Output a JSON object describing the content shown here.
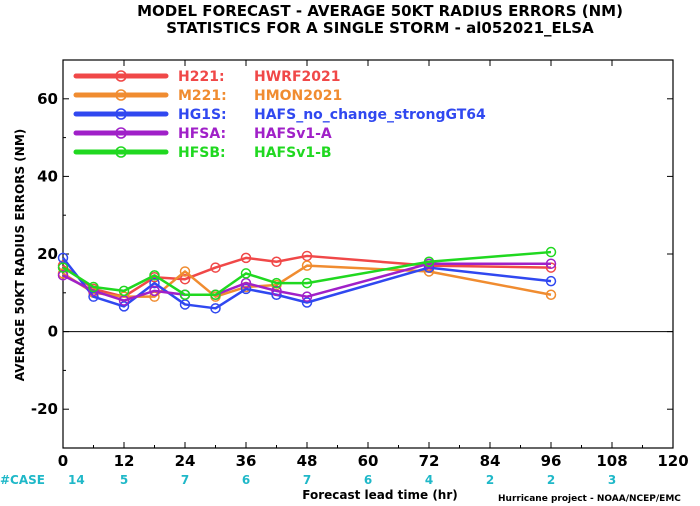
{
  "title_line1": "MODEL FORECAST - AVERAGE 50KT RADIUS ERRORS (NM)",
  "title_line2": "STATISTICS FOR A SINGLE STORM - al052021_ELSA",
  "credit": "Hurricane project - NOAA/NCEP/EMC",
  "case_prefix": "#CASE",
  "chart_data": {
    "type": "line",
    "title": "MODEL FORECAST - AVERAGE 50KT RADIUS ERRORS (NM)",
    "subtitle": "STATISTICS FOR A SINGLE STORM - al052021_ELSA",
    "xlabel": "Forecast lead time (hr)",
    "ylabel": "AVERAGE 50KT RADIUS ERRORS (NM)",
    "xlim": [
      0,
      120
    ],
    "ylim": [
      -30,
      70
    ],
    "xticks": [
      0,
      12,
      24,
      36,
      48,
      60,
      72,
      84,
      96,
      108,
      120
    ],
    "yticks": [
      -20,
      0,
      20,
      40,
      60
    ],
    "grid": false,
    "legend_position": "top-left",
    "case_counts": [
      {
        "x": 0,
        "label": "14"
      },
      {
        "x": 12,
        "label": "5"
      },
      {
        "x": 24,
        "label": "7"
      },
      {
        "x": 36,
        "label": "6"
      },
      {
        "x": 48,
        "label": "7"
      },
      {
        "x": 60,
        "label": "6"
      },
      {
        "x": 72,
        "label": "4"
      },
      {
        "x": 84,
        "label": "2"
      },
      {
        "x": 96,
        "label": "2"
      },
      {
        "x": 108,
        "label": "3"
      }
    ],
    "series": [
      {
        "name": "H221:",
        "desc": "HWRF2021",
        "color": "#f04848",
        "x": [
          0,
          6,
          12,
          18,
          24,
          30,
          36,
          42,
          48,
          72,
          96
        ],
        "y": [
          17,
          11,
          9,
          14,
          13.5,
          16.5,
          19,
          18,
          19.5,
          17,
          16.5
        ]
      },
      {
        "name": "M221:",
        "desc": "HMON2021",
        "color": "#f08c30",
        "x": [
          0,
          6,
          12,
          18,
          24,
          30,
          36,
          42,
          48,
          72,
          96
        ],
        "y": [
          15,
          10,
          9,
          9,
          15.5,
          9,
          11.5,
          12,
          17,
          15.5,
          9.5
        ]
      },
      {
        "name": "HG1S:",
        "desc": "HAFS_no_change_strongGT64",
        "color": "#3048f0",
        "x": [
          0,
          6,
          12,
          18,
          24,
          30,
          36,
          42,
          48,
          72,
          96
        ],
        "y": [
          19,
          9,
          6.5,
          12.5,
          7,
          6,
          11,
          9.5,
          7.5,
          16.5,
          13
        ]
      },
      {
        "name": "HFSA:",
        "desc": "HAFSv1-A",
        "color": "#a020c8",
        "x": [
          0,
          6,
          12,
          18,
          24,
          30,
          36,
          42,
          48,
          72,
          96
        ],
        "y": [
          14.5,
          10.5,
          8,
          10.5,
          9.5,
          9.5,
          12.5,
          10.5,
          9,
          17.5,
          17.5
        ]
      },
      {
        "name": "HFSB:",
        "desc": "HAFSv1-B",
        "color": "#20d820",
        "x": [
          0,
          6,
          12,
          18,
          24,
          30,
          36,
          42,
          48,
          72,
          96
        ],
        "y": [
          16.5,
          11.5,
          10.5,
          14.5,
          9.5,
          9.5,
          15,
          12.5,
          12.5,
          18,
          20.5
        ]
      }
    ]
  }
}
